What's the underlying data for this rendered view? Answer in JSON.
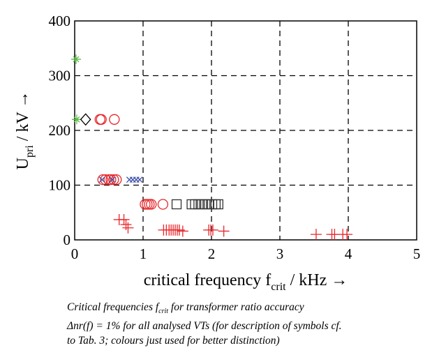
{
  "chart_data": {
    "type": "scatter",
    "xlabel": {
      "main": "critical frequency f",
      "sub": "crit",
      "unit": " / kHz →"
    },
    "ylabel": {
      "main": "U",
      "sub": "pri",
      "unit": " / kV →"
    },
    "xlim": [
      0,
      5
    ],
    "ylim": [
      0,
      400
    ],
    "xticks": [
      "0",
      "1",
      "2",
      "3",
      "4",
      "5"
    ],
    "yticks": [
      "0",
      "100",
      "200",
      "300",
      "400"
    ],
    "grid": true,
    "series": [
      {
        "marker": "asterisk",
        "color": "#5dbb46",
        "points": [
          [
            0.02,
            330
          ],
          [
            0.03,
            220
          ]
        ]
      },
      {
        "marker": "diamond",
        "color": "#000000",
        "points": [
          [
            0.16,
            220
          ]
        ]
      },
      {
        "marker": "circle",
        "color": "#e8262a",
        "points": [
          [
            0.37,
            220
          ],
          [
            0.39,
            220
          ],
          [
            0.58,
            220
          ],
          [
            0.41,
            110
          ],
          [
            0.45,
            110
          ],
          [
            0.5,
            110
          ],
          [
            0.53,
            110
          ],
          [
            0.57,
            110
          ],
          [
            0.61,
            110
          ],
          [
            1.03,
            65
          ],
          [
            1.06,
            65
          ],
          [
            1.09,
            65
          ],
          [
            1.12,
            65
          ],
          [
            1.29,
            65
          ]
        ]
      },
      {
        "marker": "x",
        "color": "#3a4fa8",
        "points": [
          [
            0.4,
            110
          ],
          [
            0.55,
            110
          ],
          [
            0.8,
            110
          ],
          [
            0.85,
            110
          ],
          [
            0.9,
            110
          ],
          [
            0.95,
            110
          ]
        ]
      },
      {
        "marker": "square",
        "color": "#333333",
        "points": [
          [
            1.49,
            65
          ],
          [
            1.71,
            65
          ],
          [
            1.76,
            65
          ],
          [
            1.81,
            65
          ],
          [
            1.86,
            65
          ],
          [
            1.91,
            65
          ],
          [
            1.96,
            65
          ],
          [
            2.01,
            65
          ],
          [
            2.06,
            65
          ],
          [
            2.1,
            65
          ]
        ]
      },
      {
        "marker": "plus",
        "color": "#e8262a",
        "points": [
          [
            0.65,
            37
          ],
          [
            0.72,
            37
          ],
          [
            0.75,
            28
          ],
          [
            0.78,
            22
          ],
          [
            1.3,
            18
          ],
          [
            1.34,
            18
          ],
          [
            1.38,
            18
          ],
          [
            1.41,
            18
          ],
          [
            1.44,
            18
          ],
          [
            1.47,
            18
          ],
          [
            1.5,
            18
          ],
          [
            1.53,
            18
          ],
          [
            1.58,
            16
          ],
          [
            1.96,
            18
          ],
          [
            1.99,
            18
          ],
          [
            2.02,
            18
          ],
          [
            2.18,
            16
          ],
          [
            3.53,
            10
          ],
          [
            3.76,
            10
          ],
          [
            3.8,
            10
          ],
          [
            3.92,
            10
          ],
          [
            3.98,
            10
          ]
        ]
      }
    ]
  },
  "caption": {
    "line1_a": "Critical frequencies f",
    "line1_sub": "crit",
    "line1_b": " for transformer ratio accuracy",
    "line2": "Δnr(f) = 1% for all analysed VTs (for description of symbols cf.",
    "line3": "to Tab. 3; colours just used for better distinction)"
  }
}
